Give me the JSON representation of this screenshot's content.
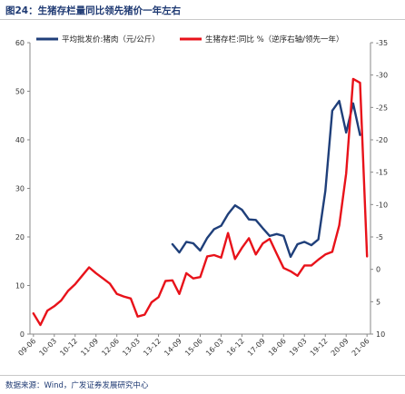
{
  "figure": {
    "title": "图24：生猪存栏量同比领先猪价一年左右",
    "source": "数据来源：Wind，广发证券发展研究中心"
  },
  "chart_data": {
    "type": "line",
    "x": [
      "09-06",
      "09-09",
      "09-12",
      "10-03",
      "10-06",
      "10-09",
      "10-12",
      "11-03",
      "11-06",
      "11-09",
      "11-12",
      "12-03",
      "12-06",
      "12-09",
      "12-12",
      "13-03",
      "13-06",
      "13-09",
      "13-12",
      "14-03",
      "14-06",
      "14-09",
      "14-12",
      "15-03",
      "15-06",
      "15-09",
      "15-12",
      "16-03",
      "16-06",
      "16-09",
      "16-12",
      "17-03",
      "17-06",
      "17-09",
      "17-12",
      "18-03",
      "18-06",
      "18-09",
      "18-12",
      "19-03",
      "19-06",
      "19-09",
      "19-12",
      "20-03",
      "20-06",
      "20-09",
      "20-12",
      "21-03",
      "21-06"
    ],
    "xticks": [
      "09-06",
      "10-03",
      "10-12",
      "11-09",
      "12-06",
      "13-03",
      "13-12",
      "14-09",
      "15-06",
      "16-03",
      "16-12",
      "17-09",
      "18-06",
      "19-03",
      "19-12",
      "20-09",
      "21-06"
    ],
    "series": [
      {
        "name": "平均批发价:猪肉（元/公斤）",
        "axis": "left",
        "color": "#1f3f7a",
        "values": [
          null,
          null,
          null,
          null,
          null,
          null,
          null,
          null,
          null,
          null,
          null,
          null,
          null,
          null,
          null,
          null,
          null,
          null,
          null,
          null,
          18.5,
          16.8,
          19.0,
          18.7,
          17.2,
          19.8,
          21.6,
          22.3,
          24.7,
          26.5,
          25.6,
          23.6,
          23.5,
          21.8,
          20.2,
          20.6,
          20.2,
          15.9,
          18.5,
          19.0,
          18.3,
          19.5,
          29.5,
          46.0,
          48.0,
          41.5,
          47.5,
          41.0,
          null
        ]
      },
      {
        "name": "生猪存栏:同比 %（逆序右轴/领先一年）",
        "axis": "right",
        "color": "#e8121a",
        "values": [
          6.8,
          8.6,
          6.4,
          5.7,
          4.8,
          3.3,
          2.3,
          1.0,
          -0.3,
          0.6,
          1.4,
          2.2,
          3.8,
          4.2,
          4.5,
          7.3,
          7.0,
          5.1,
          4.3,
          1.8,
          1.7,
          3.8,
          0.6,
          1.4,
          1.2,
          -2.0,
          -2.2,
          -1.8,
          -5.6,
          -1.6,
          -3.3,
          -4.8,
          -2.3,
          -4.0,
          -4.7,
          -2.4,
          -0.2,
          0.3,
          1.0,
          -0.6,
          -0.6,
          -1.5,
          -2.3,
          -2.7,
          -6.8,
          -14.8,
          -29.4,
          -28.8,
          -2.0
        ]
      }
    ],
    "left_axis": {
      "min": 0,
      "max": 60,
      "ticks": [
        "0",
        "10",
        "20",
        "30",
        "40",
        "50",
        "60"
      ]
    },
    "right_axis": {
      "inverted": true,
      "min": -35,
      "max": 10,
      "ticks": [
        "-35",
        "-30",
        "-25",
        "-20",
        "-15",
        "-10",
        "-5",
        "0",
        "5",
        "10"
      ]
    },
    "legend": {
      "placement": "top"
    },
    "grid": false
  }
}
